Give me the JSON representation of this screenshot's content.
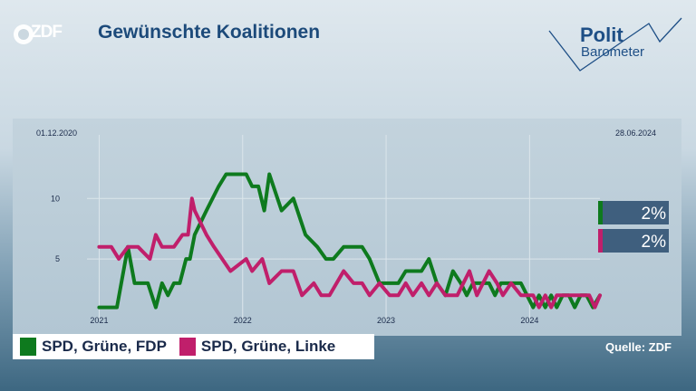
{
  "header": {
    "logo_text": "ZDF",
    "title": "Gewünschte Koalitionen",
    "brand_line1": "Polit",
    "brand_line2": "Barometer"
  },
  "source": "Quelle: ZDF",
  "chart_data": {
    "type": "line",
    "date_start": "01.12.2020",
    "date_end": "28.06.2024",
    "x_ticks": [
      "2021",
      "2022",
      "2023",
      "2024"
    ],
    "y_ticks": [
      "10",
      "5"
    ],
    "ylim": [
      0,
      16
    ],
    "series": [
      {
        "name": "SPD, Grüne, FDP",
        "color": "#0e7a1e",
        "current_label": "2%",
        "values": [
          {
            "x": "2021-01-01",
            "y": 1
          },
          {
            "x": "2021-02-01",
            "y": 1
          },
          {
            "x": "2021-02-15",
            "y": 1
          },
          {
            "x": "2021-03-15",
            "y": 6
          },
          {
            "x": "2021-04-01",
            "y": 3
          },
          {
            "x": "2021-04-20",
            "y": 3
          },
          {
            "x": "2021-05-05",
            "y": 3
          },
          {
            "x": "2021-05-25",
            "y": 1
          },
          {
            "x": "2021-06-10",
            "y": 3
          },
          {
            "x": "2021-06-25",
            "y": 2
          },
          {
            "x": "2021-07-10",
            "y": 3
          },
          {
            "x": "2021-07-25",
            "y": 3
          },
          {
            "x": "2021-08-10",
            "y": 5
          },
          {
            "x": "2021-08-20",
            "y": 5
          },
          {
            "x": "2021-09-01",
            "y": 7
          },
          {
            "x": "2021-10-01",
            "y": 9
          },
          {
            "x": "2021-11-01",
            "y": 11
          },
          {
            "x": "2021-11-20",
            "y": 12
          },
          {
            "x": "2021-12-15",
            "y": 12
          },
          {
            "x": "2022-01-10",
            "y": 12
          },
          {
            "x": "2022-01-25",
            "y": 11
          },
          {
            "x": "2022-02-10",
            "y": 11
          },
          {
            "x": "2022-02-25",
            "y": 9
          },
          {
            "x": "2022-03-10",
            "y": 12
          },
          {
            "x": "2022-04-10",
            "y": 9
          },
          {
            "x": "2022-05-10",
            "y": 10
          },
          {
            "x": "2022-06-10",
            "y": 7
          },
          {
            "x": "2022-07-10",
            "y": 6
          },
          {
            "x": "2022-08-01",
            "y": 5
          },
          {
            "x": "2022-08-20",
            "y": 5
          },
          {
            "x": "2022-09-15",
            "y": 6
          },
          {
            "x": "2022-10-10",
            "y": 6
          },
          {
            "x": "2022-11-01",
            "y": 6
          },
          {
            "x": "2022-11-20",
            "y": 5
          },
          {
            "x": "2022-12-15",
            "y": 3
          },
          {
            "x": "2023-01-10",
            "y": 3
          },
          {
            "x": "2023-02-01",
            "y": 3
          },
          {
            "x": "2023-02-20",
            "y": 4
          },
          {
            "x": "2023-03-15",
            "y": 4
          },
          {
            "x": "2023-04-01",
            "y": 4
          },
          {
            "x": "2023-04-20",
            "y": 5
          },
          {
            "x": "2023-05-10",
            "y": 3
          },
          {
            "x": "2023-06-01",
            "y": 2
          },
          {
            "x": "2023-06-20",
            "y": 4
          },
          {
            "x": "2023-07-10",
            "y": 3
          },
          {
            "x": "2023-07-25",
            "y": 2
          },
          {
            "x": "2023-08-10",
            "y": 3
          },
          {
            "x": "2023-08-25",
            "y": 3
          },
          {
            "x": "2023-09-20",
            "y": 3
          },
          {
            "x": "2023-10-05",
            "y": 2
          },
          {
            "x": "2023-10-20",
            "y": 3
          },
          {
            "x": "2023-11-05",
            "y": 3
          },
          {
            "x": "2023-11-20",
            "y": 3
          },
          {
            "x": "2023-12-10",
            "y": 3
          },
          {
            "x": "2024-01-10",
            "y": 1
          },
          {
            "x": "2024-01-25",
            "y": 2
          },
          {
            "x": "2024-02-10",
            "y": 1
          },
          {
            "x": "2024-02-25",
            "y": 2
          },
          {
            "x": "2024-03-10",
            "y": 1
          },
          {
            "x": "2024-03-25",
            "y": 2
          },
          {
            "x": "2024-04-10",
            "y": 2
          },
          {
            "x": "2024-04-25",
            "y": 1
          },
          {
            "x": "2024-05-10",
            "y": 2
          },
          {
            "x": "2024-05-25",
            "y": 2
          },
          {
            "x": "2024-06-10",
            "y": 1
          },
          {
            "x": "2024-06-28",
            "y": 2
          }
        ]
      },
      {
        "name": "SPD, Grüne, Linke",
        "color": "#c01f6b",
        "current_label": "2%",
        "values": [
          {
            "x": "2021-01-01",
            "y": 6
          },
          {
            "x": "2021-02-01",
            "y": 6
          },
          {
            "x": "2021-02-20",
            "y": 5
          },
          {
            "x": "2021-03-15",
            "y": 6
          },
          {
            "x": "2021-04-10",
            "y": 6
          },
          {
            "x": "2021-05-10",
            "y": 5
          },
          {
            "x": "2021-05-25",
            "y": 7
          },
          {
            "x": "2021-06-10",
            "y": 6
          },
          {
            "x": "2021-07-10",
            "y": 6
          },
          {
            "x": "2021-08-01",
            "y": 7
          },
          {
            "x": "2021-08-15",
            "y": 7
          },
          {
            "x": "2021-08-25",
            "y": 10
          },
          {
            "x": "2021-09-01",
            "y": 9
          },
          {
            "x": "2021-10-01",
            "y": 7
          },
          {
            "x": "2021-10-20",
            "y": 6
          },
          {
            "x": "2021-11-10",
            "y": 5
          },
          {
            "x": "2021-12-01",
            "y": 4
          },
          {
            "x": "2022-01-10",
            "y": 5
          },
          {
            "x": "2022-01-25",
            "y": 4
          },
          {
            "x": "2022-02-20",
            "y": 5
          },
          {
            "x": "2022-03-10",
            "y": 3
          },
          {
            "x": "2022-04-10",
            "y": 4
          },
          {
            "x": "2022-05-10",
            "y": 4
          },
          {
            "x": "2022-06-01",
            "y": 2
          },
          {
            "x": "2022-07-01",
            "y": 3
          },
          {
            "x": "2022-07-20",
            "y": 2
          },
          {
            "x": "2022-08-10",
            "y": 2
          },
          {
            "x": "2022-09-15",
            "y": 4
          },
          {
            "x": "2022-10-10",
            "y": 3
          },
          {
            "x": "2022-11-01",
            "y": 3
          },
          {
            "x": "2022-11-20",
            "y": 2
          },
          {
            "x": "2022-12-15",
            "y": 3
          },
          {
            "x": "2023-01-10",
            "y": 2
          },
          {
            "x": "2023-02-01",
            "y": 2
          },
          {
            "x": "2023-02-20",
            "y": 3
          },
          {
            "x": "2023-03-10",
            "y": 2
          },
          {
            "x": "2023-04-01",
            "y": 3
          },
          {
            "x": "2023-04-20",
            "y": 2
          },
          {
            "x": "2023-05-10",
            "y": 3
          },
          {
            "x": "2023-06-01",
            "y": 2
          },
          {
            "x": "2023-07-01",
            "y": 2
          },
          {
            "x": "2023-08-01",
            "y": 4
          },
          {
            "x": "2023-08-20",
            "y": 2
          },
          {
            "x": "2023-09-20",
            "y": 4
          },
          {
            "x": "2023-10-10",
            "y": 3
          },
          {
            "x": "2023-10-25",
            "y": 2
          },
          {
            "x": "2023-11-15",
            "y": 3
          },
          {
            "x": "2023-12-10",
            "y": 2
          },
          {
            "x": "2024-01-10",
            "y": 2
          },
          {
            "x": "2024-01-25",
            "y": 1
          },
          {
            "x": "2024-02-10",
            "y": 2
          },
          {
            "x": "2024-02-25",
            "y": 1
          },
          {
            "x": "2024-03-10",
            "y": 2
          },
          {
            "x": "2024-04-01",
            "y": 2
          },
          {
            "x": "2024-05-01",
            "y": 2
          },
          {
            "x": "2024-06-01",
            "y": 2
          },
          {
            "x": "2024-06-15",
            "y": 1
          },
          {
            "x": "2024-06-28",
            "y": 2
          }
        ]
      }
    ]
  }
}
